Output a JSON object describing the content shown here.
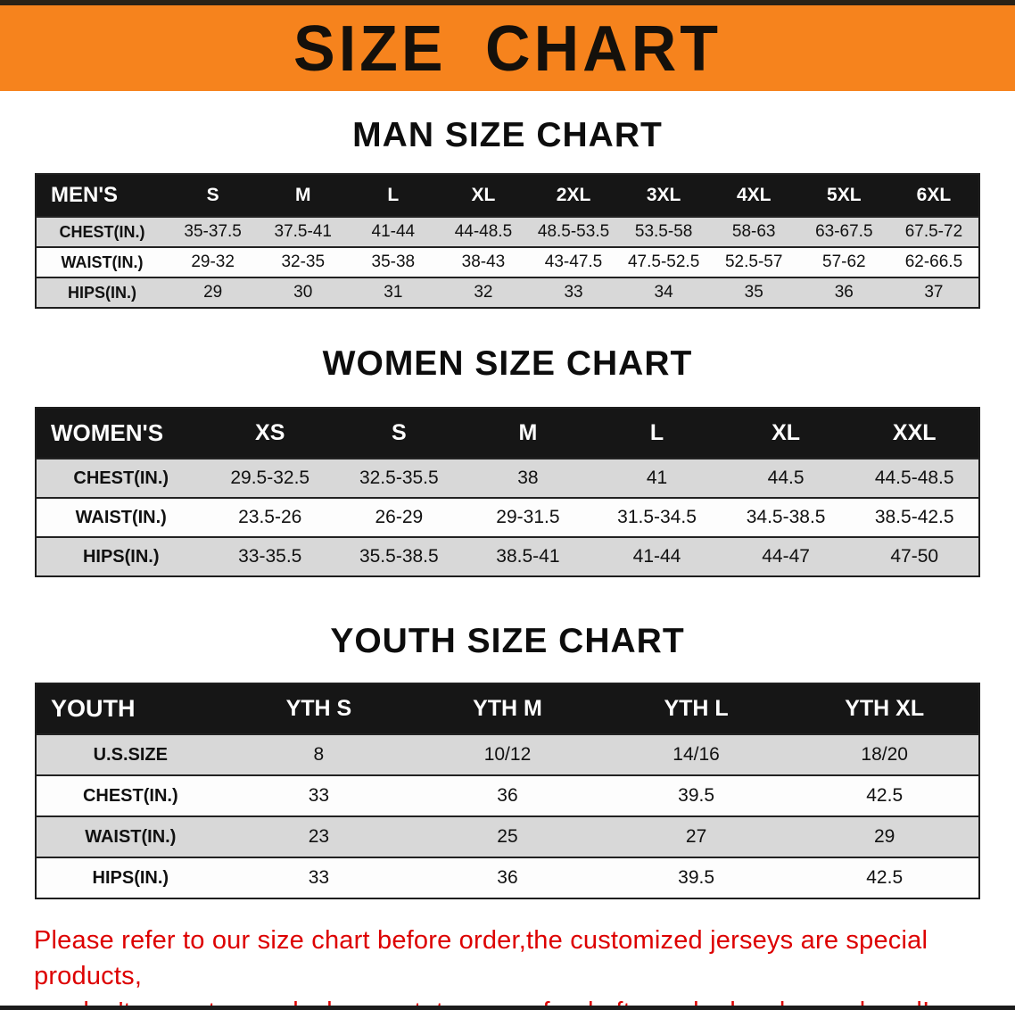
{
  "banner": {
    "title": "SIZE CHART"
  },
  "colors": {
    "banner_orange": "#F6831D",
    "notice_red": "#DD0000",
    "header_black": "#161616",
    "row_gray": "#D8D8D8"
  },
  "sections": [
    {
      "heading": "MAN SIZE CHART",
      "table": {
        "header": [
          "MEN'S",
          "S",
          "M",
          "L",
          "XL",
          "2XL",
          "3XL",
          "4XL",
          "5XL",
          "6XL"
        ],
        "rows": [
          [
            "CHEST(IN.)",
            "35-37.5",
            "37.5-41",
            "41-44",
            "44-48.5",
            "48.5-53.5",
            "53.5-58",
            "58-63",
            "63-67.5",
            "67.5-72"
          ],
          [
            "WAIST(IN.)",
            "29-32",
            "32-35",
            "35-38",
            "38-43",
            "43-47.5",
            "47.5-52.5",
            "52.5-57",
            "57-62",
            "62-66.5"
          ],
          [
            "HIPS(IN.)",
            "29",
            "30",
            "31",
            "32",
            "33",
            "34",
            "35",
            "36",
            "37"
          ]
        ]
      }
    },
    {
      "heading": "WOMEN SIZE CHART",
      "table": {
        "header": [
          "WOMEN'S",
          "XS",
          "S",
          "M",
          "L",
          "XL",
          "XXL"
        ],
        "rows": [
          [
            "CHEST(IN.)",
            "29.5-32.5",
            "32.5-35.5",
            "38",
            "41",
            "44.5",
            "44.5-48.5"
          ],
          [
            "WAIST(IN.)",
            "23.5-26",
            "26-29",
            "29-31.5",
            "31.5-34.5",
            "34.5-38.5",
            "38.5-42.5"
          ],
          [
            "HIPS(IN.)",
            "33-35.5",
            "35.5-38.5",
            "38.5-41",
            "41-44",
            "44-47",
            "47-50"
          ]
        ]
      }
    },
    {
      "heading": "YOUTH SIZE CHART",
      "table": {
        "header": [
          "YOUTH",
          "YTH S",
          "YTH M",
          "YTH L",
          "YTH XL"
        ],
        "rows": [
          [
            "U.S.SIZE",
            "8",
            "10/12",
            "14/16",
            "18/20"
          ],
          [
            "CHEST(IN.)",
            "33",
            "36",
            "39.5",
            "42.5"
          ],
          [
            "WAIST(IN.)",
            "23",
            "25",
            "27",
            "29"
          ],
          [
            "HIPS(IN.)",
            "33",
            "36",
            "39.5",
            "42.5"
          ]
        ]
      }
    }
  ],
  "footer": {
    "line1": "Please refer to our size chart before order,the customized jerseys are special products,",
    "line2": "we don't accept cancel, change, teturn or refund after order has been placed!"
  }
}
